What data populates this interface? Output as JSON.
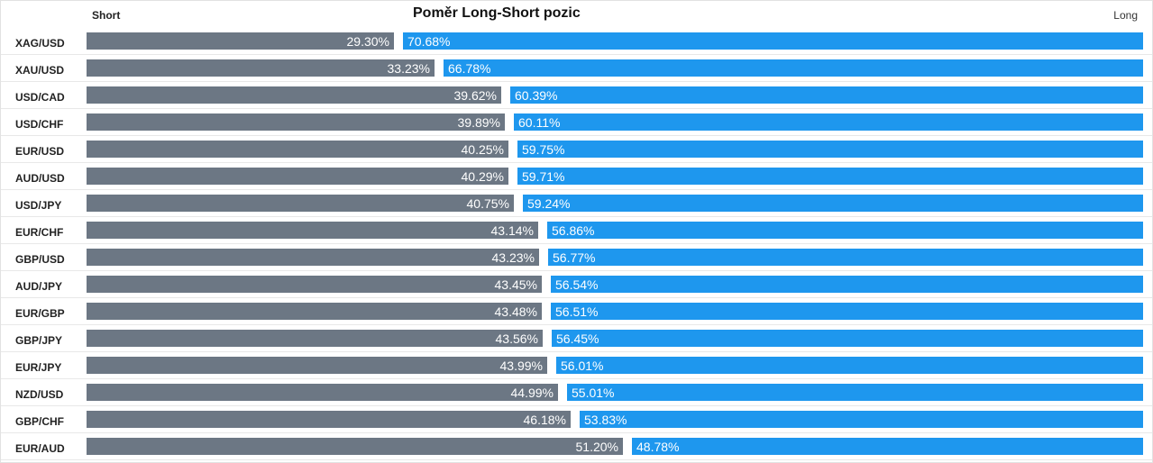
{
  "header": {
    "title": "Poměr Long-Short pozic",
    "short_label": "Short",
    "long_label": "Long"
  },
  "colors": {
    "short": "#6c7784",
    "long": "#1e97ee"
  },
  "chart_data": {
    "type": "bar",
    "title": "Poměr Long-Short pozic",
    "legend": [
      "Short",
      "Long"
    ],
    "rows": [
      {
        "pair": "XAG/USD",
        "short": 29.3,
        "long": 70.68,
        "short_label": "29.30%",
        "long_label": "70.68%"
      },
      {
        "pair": "XAU/USD",
        "short": 33.23,
        "long": 66.78,
        "short_label": "33.23%",
        "long_label": "66.78%"
      },
      {
        "pair": "USD/CAD",
        "short": 39.62,
        "long": 60.39,
        "short_label": "39.62%",
        "long_label": "60.39%"
      },
      {
        "pair": "USD/CHF",
        "short": 39.89,
        "long": 60.11,
        "short_label": "39.89%",
        "long_label": "60.11%"
      },
      {
        "pair": "EUR/USD",
        "short": 40.25,
        "long": 59.75,
        "short_label": "40.25%",
        "long_label": "59.75%"
      },
      {
        "pair": "AUD/USD",
        "short": 40.29,
        "long": 59.71,
        "short_label": "40.29%",
        "long_label": "59.71%"
      },
      {
        "pair": "USD/JPY",
        "short": 40.75,
        "long": 59.24,
        "short_label": "40.75%",
        "long_label": "59.24%"
      },
      {
        "pair": "EUR/CHF",
        "short": 43.14,
        "long": 56.86,
        "short_label": "43.14%",
        "long_label": "56.86%"
      },
      {
        "pair": "GBP/USD",
        "short": 43.23,
        "long": 56.77,
        "short_label": "43.23%",
        "long_label": "56.77%"
      },
      {
        "pair": "AUD/JPY",
        "short": 43.45,
        "long": 56.54,
        "short_label": "43.45%",
        "long_label": "56.54%"
      },
      {
        "pair": "EUR/GBP",
        "short": 43.48,
        "long": 56.51,
        "short_label": "43.48%",
        "long_label": "56.51%"
      },
      {
        "pair": "GBP/JPY",
        "short": 43.56,
        "long": 56.45,
        "short_label": "43.56%",
        "long_label": "56.45%"
      },
      {
        "pair": "EUR/JPY",
        "short": 43.99,
        "long": 56.01,
        "short_label": "43.99%",
        "long_label": "56.01%"
      },
      {
        "pair": "NZD/USD",
        "short": 44.99,
        "long": 55.01,
        "short_label": "44.99%",
        "long_label": "55.01%"
      },
      {
        "pair": "GBP/CHF",
        "short": 46.18,
        "long": 53.83,
        "short_label": "46.18%",
        "long_label": "53.83%"
      },
      {
        "pair": "EUR/AUD",
        "short": 51.2,
        "long": 48.78,
        "short_label": "51.20%",
        "long_label": "48.78%"
      }
    ]
  }
}
